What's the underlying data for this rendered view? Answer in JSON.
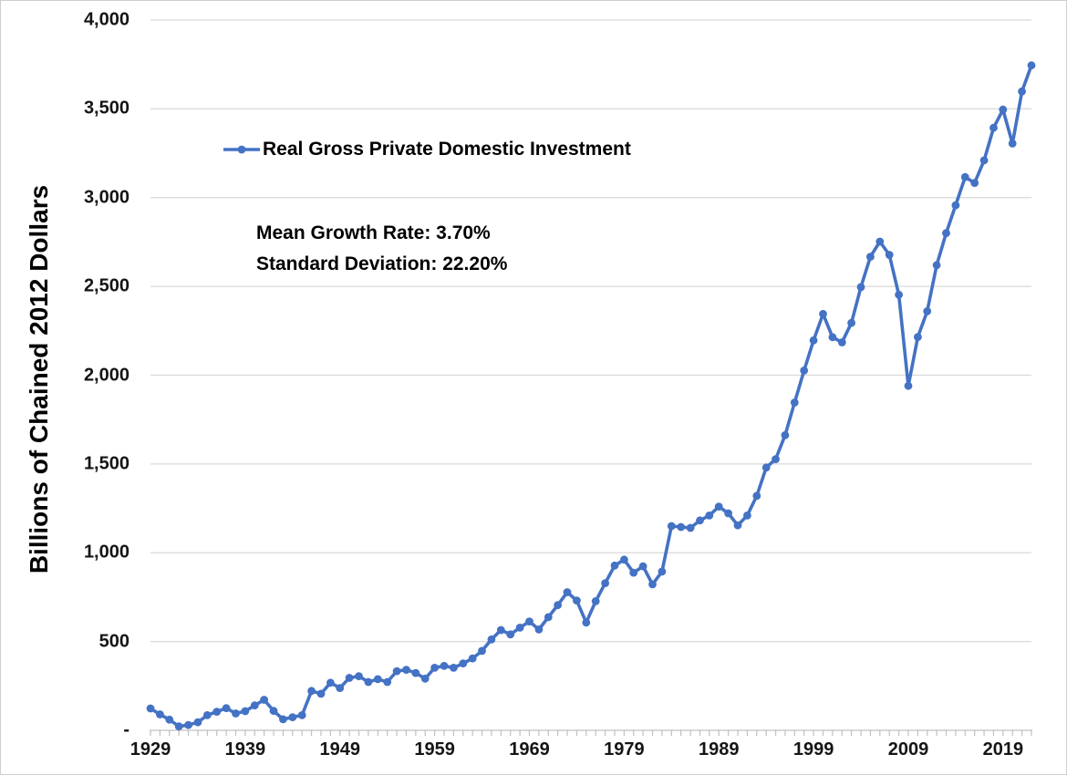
{
  "chart_data": {
    "type": "line",
    "title": "",
    "xlabel": "",
    "ylabel": "Billions of Chained 2012 Dollars",
    "x_range": [
      1929,
      2022
    ],
    "ylim": [
      0,
      4000
    ],
    "grid": "horizontal-only",
    "legend_position": "inside-top-left",
    "annotations": {
      "mean_growth_rate": "Mean Growth Rate: 3.70%",
      "standard_deviation": "Standard Deviation: 22.20%"
    },
    "colors": {
      "line": "#4472C4",
      "marker": "#4472C4",
      "gridline": "#D9D9D9",
      "axis": "#BFBFBF",
      "text": "#151515"
    },
    "y_ticks": [
      {
        "value": 4000,
        "label": "4,000"
      },
      {
        "value": 3500,
        "label": "3,500"
      },
      {
        "value": 3000,
        "label": "3,000"
      },
      {
        "value": 2500,
        "label": "2,500"
      },
      {
        "value": 2000,
        "label": "2,000"
      },
      {
        "value": 1500,
        "label": "1,500"
      },
      {
        "value": 1000,
        "label": "1,000"
      },
      {
        "value": 500,
        "label": "500"
      },
      {
        "value": 0,
        "label": "-"
      }
    ],
    "x_tick_years_labeled": [
      1929,
      1939,
      1949,
      1959,
      1969,
      1979,
      1989,
      1999,
      2009,
      2019
    ],
    "x_minor_tick_interval": 1,
    "series": [
      {
        "name": "Real Gross Private Domestic Investment",
        "start_year": 1929,
        "end_year": 2022,
        "values": [
          123,
          90,
          60,
          22,
          30,
          45,
          85,
          105,
          125,
          95,
          108,
          140,
          172,
          110,
          62,
          74,
          85,
          222,
          206,
          268,
          238,
          295,
          305,
          272,
          288,
          272,
          333,
          341,
          323,
          291,
          352,
          363,
          352,
          377,
          405,
          447,
          512,
          565,
          540,
          578,
          613,
          568,
          637,
          705,
          778,
          731,
          607,
          727,
          829,
          928,
          961,
          888,
          924,
          822,
          894,
          1150,
          1145,
          1140,
          1182,
          1210,
          1260,
          1222,
          1155,
          1210,
          1320,
          1480,
          1527,
          1662,
          1846,
          2026,
          2196,
          2345,
          2214,
          2185,
          2294,
          2496,
          2667,
          2752,
          2678,
          2453,
          1940,
          2215,
          2360,
          2620,
          2800,
          2957,
          3116,
          3083,
          3210,
          3393,
          3496,
          3305,
          3598,
          3745
        ]
      }
    ]
  }
}
